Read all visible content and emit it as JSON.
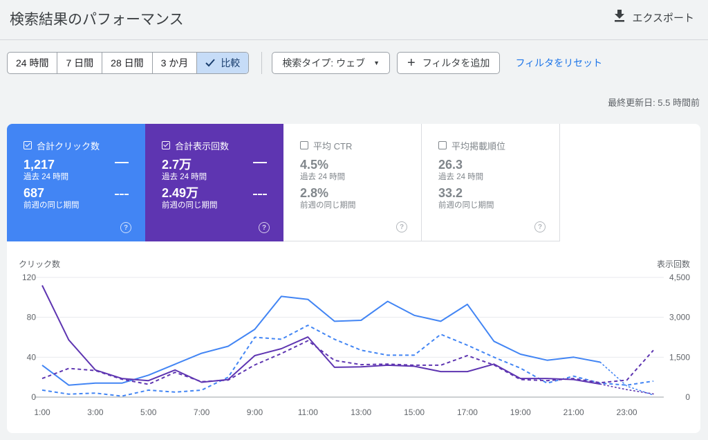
{
  "header": {
    "title": "検索結果のパフォーマンス",
    "export_label": "エクスポート"
  },
  "toolbar": {
    "ranges": [
      "24 時間",
      "7 日間",
      "28 日間",
      "3 か月"
    ],
    "compare_label": "比較",
    "search_type": "検索タイプ: ウェブ",
    "add_filter": "フィルタを追加",
    "reset_filter": "フィルタをリセット"
  },
  "updated": "最終更新日: 5.5 時間前",
  "metrics": [
    {
      "label": "合計クリック数",
      "checked": true,
      "value": "1,217",
      "period": "過去 24 時間",
      "prev_value": "687",
      "prev_period": "前週の同じ期間"
    },
    {
      "label": "合計表示回数",
      "checked": true,
      "value": "2.7万",
      "period": "過去 24 時間",
      "prev_value": "2.49万",
      "prev_period": "前週の同じ期間"
    },
    {
      "label": "平均 CTR",
      "checked": false,
      "value": "4.5%",
      "period": "過去 24 時間",
      "prev_value": "2.8%",
      "prev_period": "前週の同じ期間"
    },
    {
      "label": "平均掲載順位",
      "checked": false,
      "value": "26.3",
      "period": "過去 24 時間",
      "prev_value": "33.2",
      "prev_period": "前週の同じ期間"
    }
  ],
  "colors": {
    "clicks": "#4285f4",
    "impressions": "#5e35b1"
  },
  "chart_data": {
    "type": "line",
    "left_axis_label": "クリック数",
    "right_axis_label": "表示回数",
    "left_ticks": [
      "120",
      "80",
      "40",
      "0"
    ],
    "right_ticks": [
      "4,500",
      "3,000",
      "1,500",
      "0"
    ],
    "x_ticks": [
      "1:00",
      "3:00",
      "5:00",
      "7:00",
      "9:00",
      "11:00",
      "13:00",
      "15:00",
      "17:00",
      "19:00",
      "21:00",
      "23:00"
    ],
    "left_range": [
      0,
      120
    ],
    "right_range": [
      0,
      4500
    ],
    "x": [
      "1:00",
      "2:00",
      "3:00",
      "4:00",
      "5:00",
      "6:00",
      "7:00",
      "8:00",
      "9:00",
      "10:00",
      "11:00",
      "12:00",
      "13:00",
      "14:00",
      "15:00",
      "16:00",
      "17:00",
      "18:00",
      "19:00",
      "20:00",
      "21:00",
      "22:00",
      "23:00",
      "24:00"
    ],
    "series": [
      {
        "axis": "left",
        "style": "solid",
        "color": "#4285f4",
        "values": [
          32,
          12,
          14,
          14,
          22,
          33,
          44,
          51,
          68,
          101,
          98,
          76,
          77,
          96,
          82,
          76,
          93,
          56,
          43,
          37,
          40,
          35,
          11,
          2
        ],
        "dotted_from": 21
      },
      {
        "axis": "left",
        "style": "dash",
        "color": "#4285f4",
        "values": [
          7,
          3,
          4,
          1,
          7,
          5,
          7,
          20,
          60,
          58,
          72,
          58,
          47,
          42,
          42,
          63,
          52,
          40,
          29,
          14,
          21,
          14,
          12,
          16
        ]
      },
      {
        "axis": "right",
        "style": "solid",
        "color": "#5e35b1",
        "values": [
          4200,
          2150,
          1020,
          700,
          620,
          1020,
          560,
          660,
          1560,
          1820,
          2260,
          1120,
          1140,
          1200,
          1160,
          960,
          960,
          1240,
          700,
          700,
          660,
          490,
          280,
          120
        ],
        "dotted_from": 21
      },
      {
        "axis": "right",
        "style": "dash",
        "color": "#5e35b1",
        "values": [
          700,
          1080,
          1000,
          670,
          480,
          930,
          580,
          640,
          1210,
          1640,
          2120,
          1380,
          1220,
          1240,
          1200,
          1200,
          1560,
          1210,
          660,
          620,
          700,
          540,
          640,
          1760
        ]
      }
    ]
  }
}
